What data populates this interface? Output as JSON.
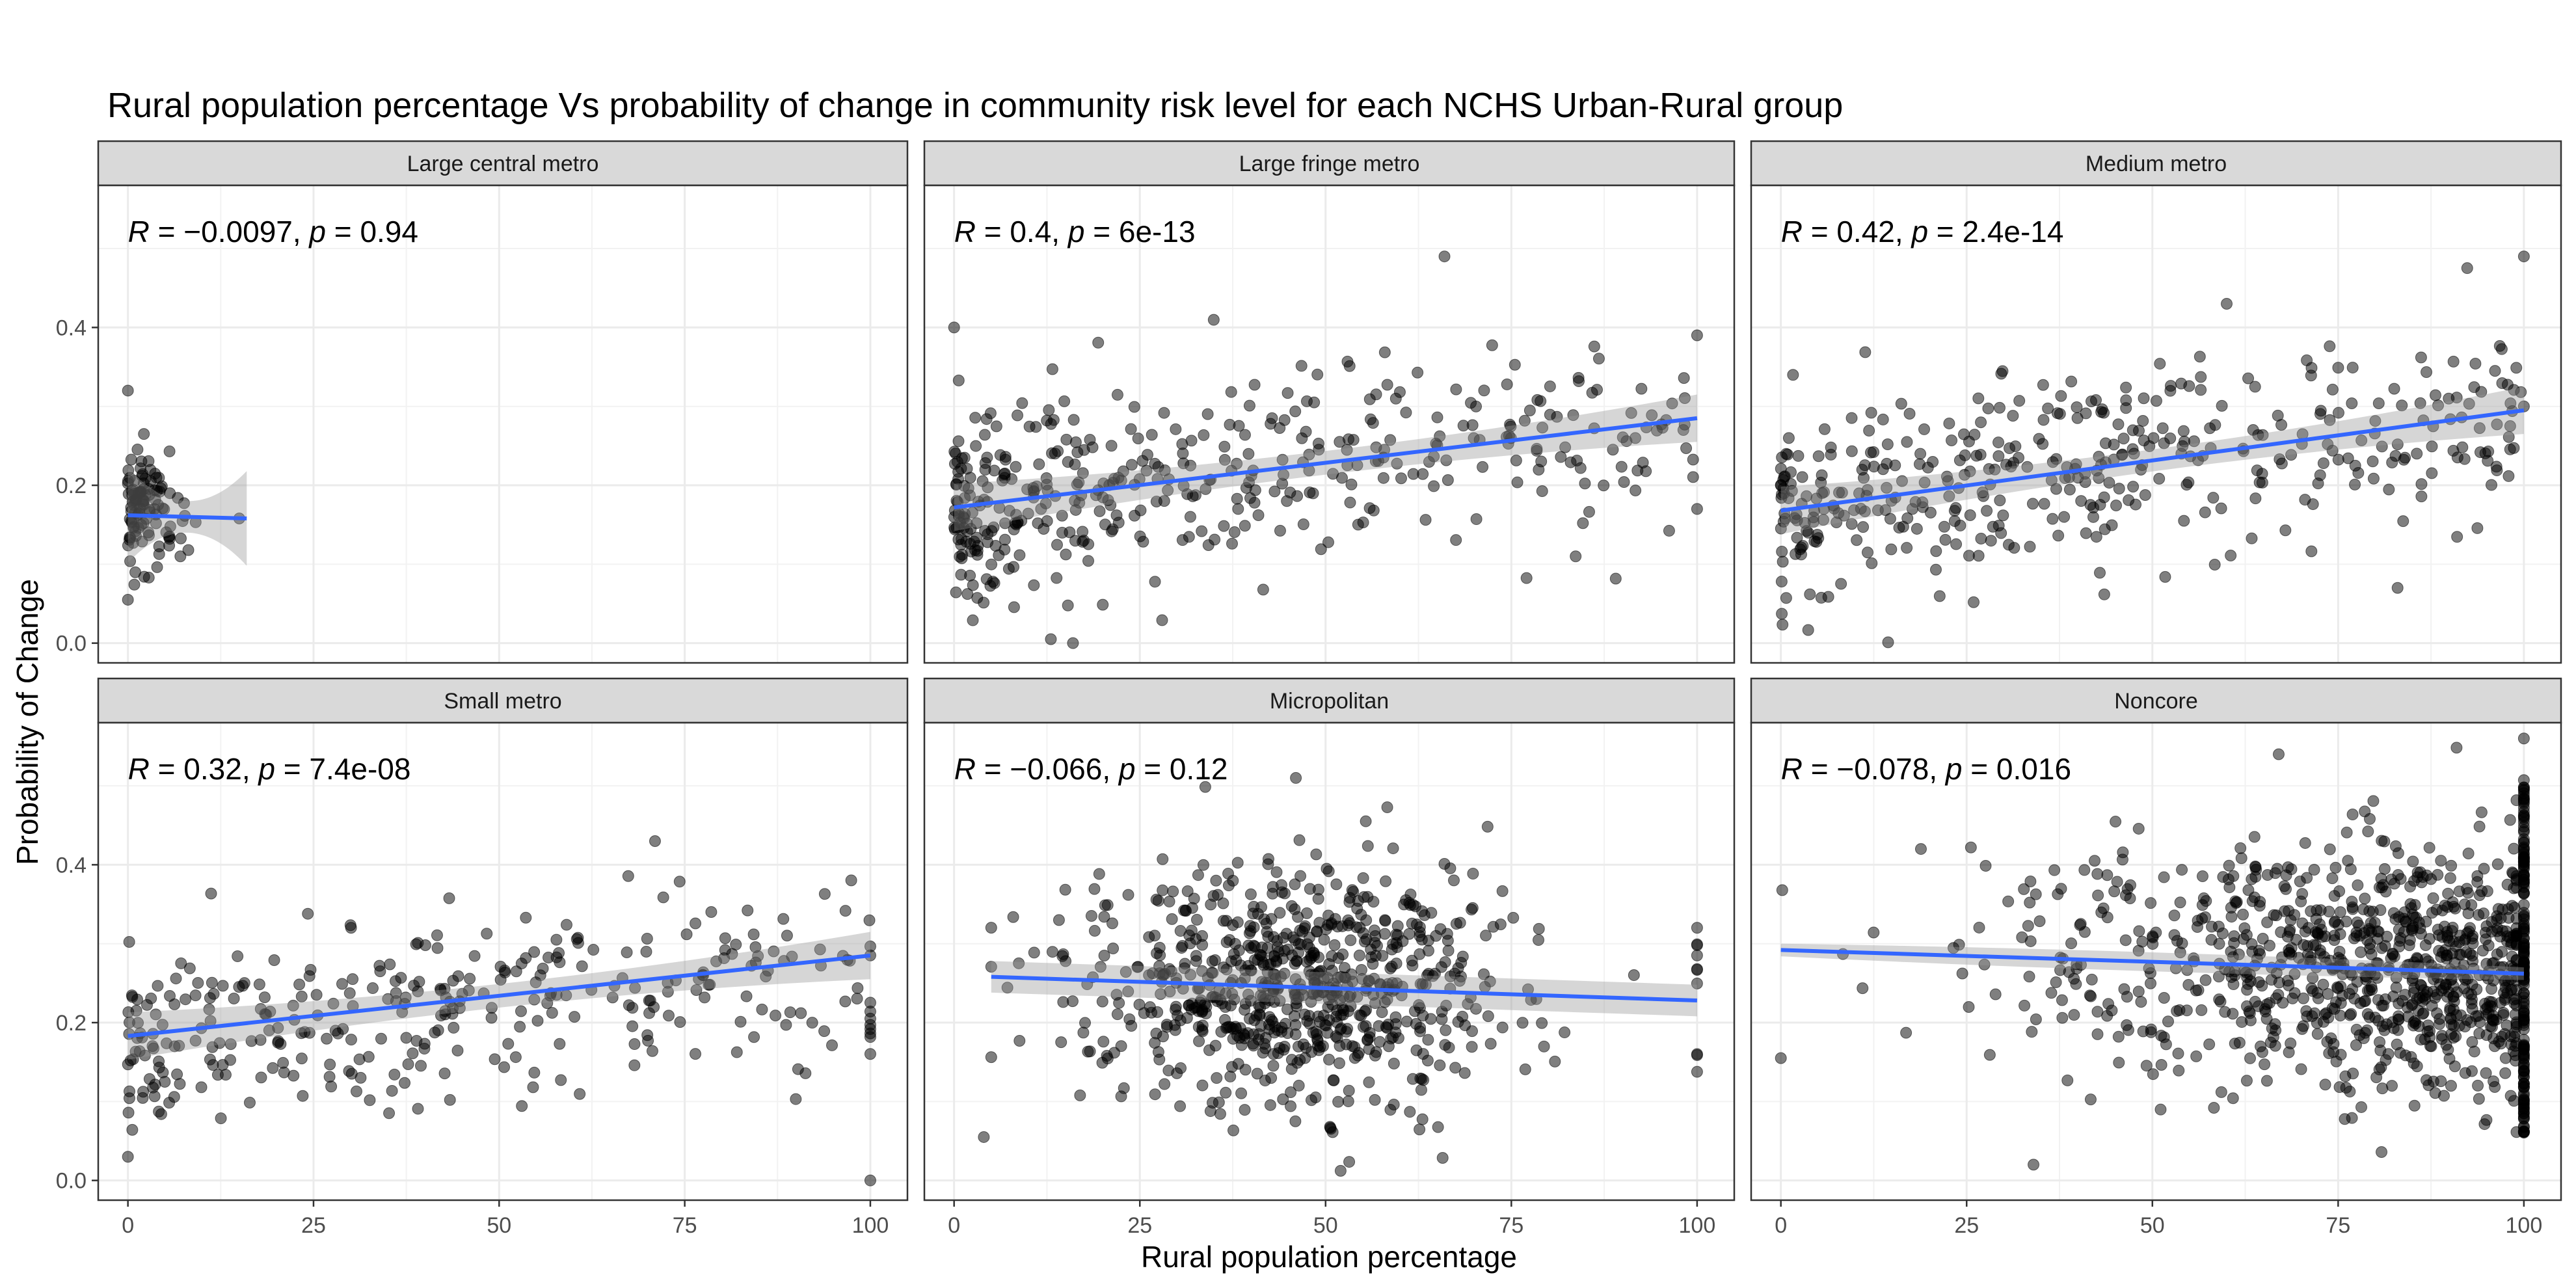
{
  "chart_data": {
    "type": "scatter",
    "title": "Rural population percentage Vs probability of change in community risk level for each NCHS Urban-Rural group",
    "xlabel": "Rural population percentage",
    "ylabel": "Probability of Change",
    "xlim": [
      -4,
      105
    ],
    "ylim": [
      -0.025,
      0.58
    ],
    "x_ticks": [
      0,
      25,
      50,
      75,
      100
    ],
    "x_tick_labels": [
      "0",
      "25",
      "50",
      "75",
      "100"
    ],
    "y_ticks": [
      0.0,
      0.2,
      0.4
    ],
    "y_tick_labels": [
      "0.0",
      "0.2",
      "0.4"
    ],
    "grid": true,
    "point_color": "#000000",
    "point_opacity": 0.5,
    "fit_line_color": "#3366FF",
    "ci_band_color": "#999999",
    "strip_fill": "#D9D9D9",
    "panels": [
      {
        "name": "Large central metro",
        "r_value": "−0.0097",
        "p_value": "0.94",
        "fit": {
          "x0": 0,
          "y0": 0.162,
          "x1": 16,
          "y1": 0.158
        },
        "ci_halfwidth": [
          0.02,
          0.06
        ]
      },
      {
        "name": "Large fringe metro",
        "r_value": "0.4",
        "p_value": "6e-13",
        "fit": {
          "x0": 0,
          "y0": 0.172,
          "x1": 100,
          "y1": 0.285
        },
        "ci_halfwidth": [
          0.015,
          0.03
        ]
      },
      {
        "name": "Medium metro",
        "r_value": "0.42",
        "p_value": "2.4e-14",
        "fit": {
          "x0": 0,
          "y0": 0.168,
          "x1": 100,
          "y1": 0.295
        },
        "ci_halfwidth": [
          0.014,
          0.03
        ]
      },
      {
        "name": "Small metro",
        "r_value": "0.32",
        "p_value": "7.4e-08",
        "fit": {
          "x0": 0,
          "y0": 0.183,
          "x1": 100,
          "y1": 0.285
        },
        "ci_halfwidth": [
          0.015,
          0.03
        ]
      },
      {
        "name": "Micropolitan",
        "r_value": "−0.066",
        "p_value": "0.12",
        "fit": {
          "x0": 5,
          "y0": 0.258,
          "x1": 100,
          "y1": 0.228
        },
        "ci_halfwidth": [
          0.02,
          0.02
        ]
      },
      {
        "name": "Noncore",
        "r_value": "−0.078",
        "p_value": "0.016",
        "fit": {
          "x0": 0,
          "y0": 0.292,
          "x1": 100,
          "y1": 0.262
        },
        "ci_halfwidth": [
          0.012,
          0.008
        ]
      }
    ]
  }
}
